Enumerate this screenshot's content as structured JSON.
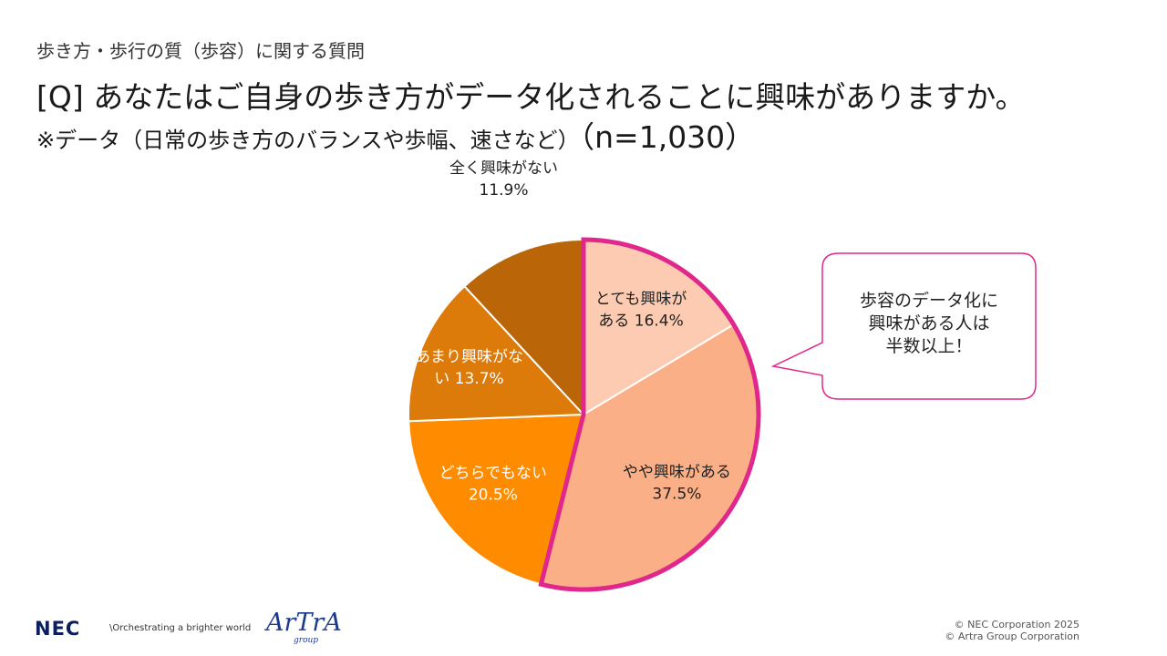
{
  "header": {
    "category": "歩き方・歩行の質（歩容）に関する質問",
    "question": "[Q] あなたはご自身の歩き方がデータ化されることに興味がありますか。",
    "note": "※データ（日常の歩き方のバランスや歩幅、速さなど）",
    "sample": "（n=1,030）"
  },
  "chart_data": {
    "type": "pie",
    "start_angle_deg": 0,
    "direction": "clockwise",
    "slices": [
      {
        "label_line1": "とても興味が",
        "label_line2": "ある 16.4%",
        "label": "とても興味がある",
        "value": 16.4,
        "color": "#FCCBB1"
      },
      {
        "label_line1": "やや興味がある",
        "label_line2": "37.5%",
        "label": "やや興味がある",
        "value": 37.5,
        "color": "#FBAF87"
      },
      {
        "label_line1": "どちらでもない",
        "label_line2": "20.5%",
        "label": "どちらでもない",
        "value": 20.5,
        "color": "#FF8C00"
      },
      {
        "label_line1": "あまり興味がな",
        "label_line2": "い 13.7%",
        "label": "あまり興味がない",
        "value": 13.7,
        "color": "#DC7A0A"
      },
      {
        "label_line1": "全く興味がない",
        "label_line2": "11.9%",
        "label": "全く興味がない",
        "value": 11.9,
        "color": "#BA6507"
      }
    ],
    "highlight_slices": [
      0,
      1
    ],
    "highlight_color": "#E0288C"
  },
  "callout": {
    "line1": "歩容のデータ化に",
    "line2": "興味がある人は",
    "line3": "半数以上！",
    "border_color": "#E0288C"
  },
  "footer": {
    "nec_logo": "NEC",
    "tagline": "\\Orchestrating a brighter world",
    "artra_logo": "ArTrA",
    "artra_sub": "group",
    "copyright1": "© NEC Corporation 2025",
    "copyright2": "© Artra Group Corporation"
  }
}
